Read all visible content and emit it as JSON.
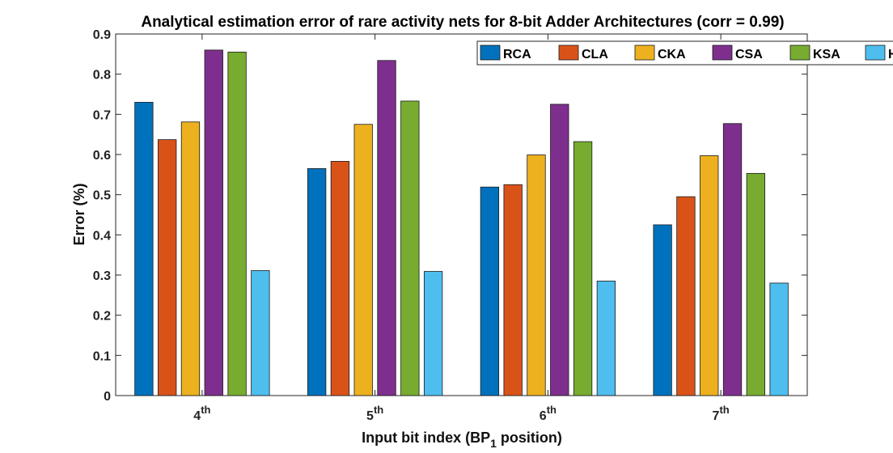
{
  "chart_data": {
    "type": "bar",
    "title": "Analytical estimation error of rare activity nets for 8-bit Adder Architectures (corr = 0.99)",
    "xlabel": {
      "prefix": "Input bit index (BP",
      "sub": "1",
      "suffix": " position)"
    },
    "ylabel": "Error (%)",
    "ylim": [
      0,
      0.9
    ],
    "yticks": [
      "0",
      "0.1",
      "0.2",
      "0.3",
      "0.4",
      "0.5",
      "0.6",
      "0.7",
      "0.8",
      "0.9"
    ],
    "categories": [
      {
        "base": "4",
        "sup": "th"
      },
      {
        "base": "5",
        "sup": "th"
      },
      {
        "base": "6",
        "sup": "th"
      },
      {
        "base": "7",
        "sup": "th"
      }
    ],
    "legend_position": "top-right",
    "series": [
      {
        "name": "RCA",
        "color": "#0072BD",
        "values": [
          0.73,
          0.565,
          0.519,
          0.425
        ]
      },
      {
        "name": "CLA",
        "color": "#D95319",
        "values": [
          0.637,
          0.583,
          0.525,
          0.495
        ]
      },
      {
        "name": "CKA",
        "color": "#EDB120",
        "values": [
          0.681,
          0.675,
          0.599,
          0.597
        ]
      },
      {
        "name": "CSA",
        "color": "#7E2F8E",
        "values": [
          0.86,
          0.834,
          0.725,
          0.677
        ]
      },
      {
        "name": "KSA",
        "color": "#77AC30",
        "values": [
          0.855,
          0.733,
          0.632,
          0.553
        ]
      },
      {
        "name": "HA",
        "color": "#4DBEEE",
        "values": [
          0.311,
          0.309,
          0.285,
          0.28
        ]
      }
    ]
  }
}
